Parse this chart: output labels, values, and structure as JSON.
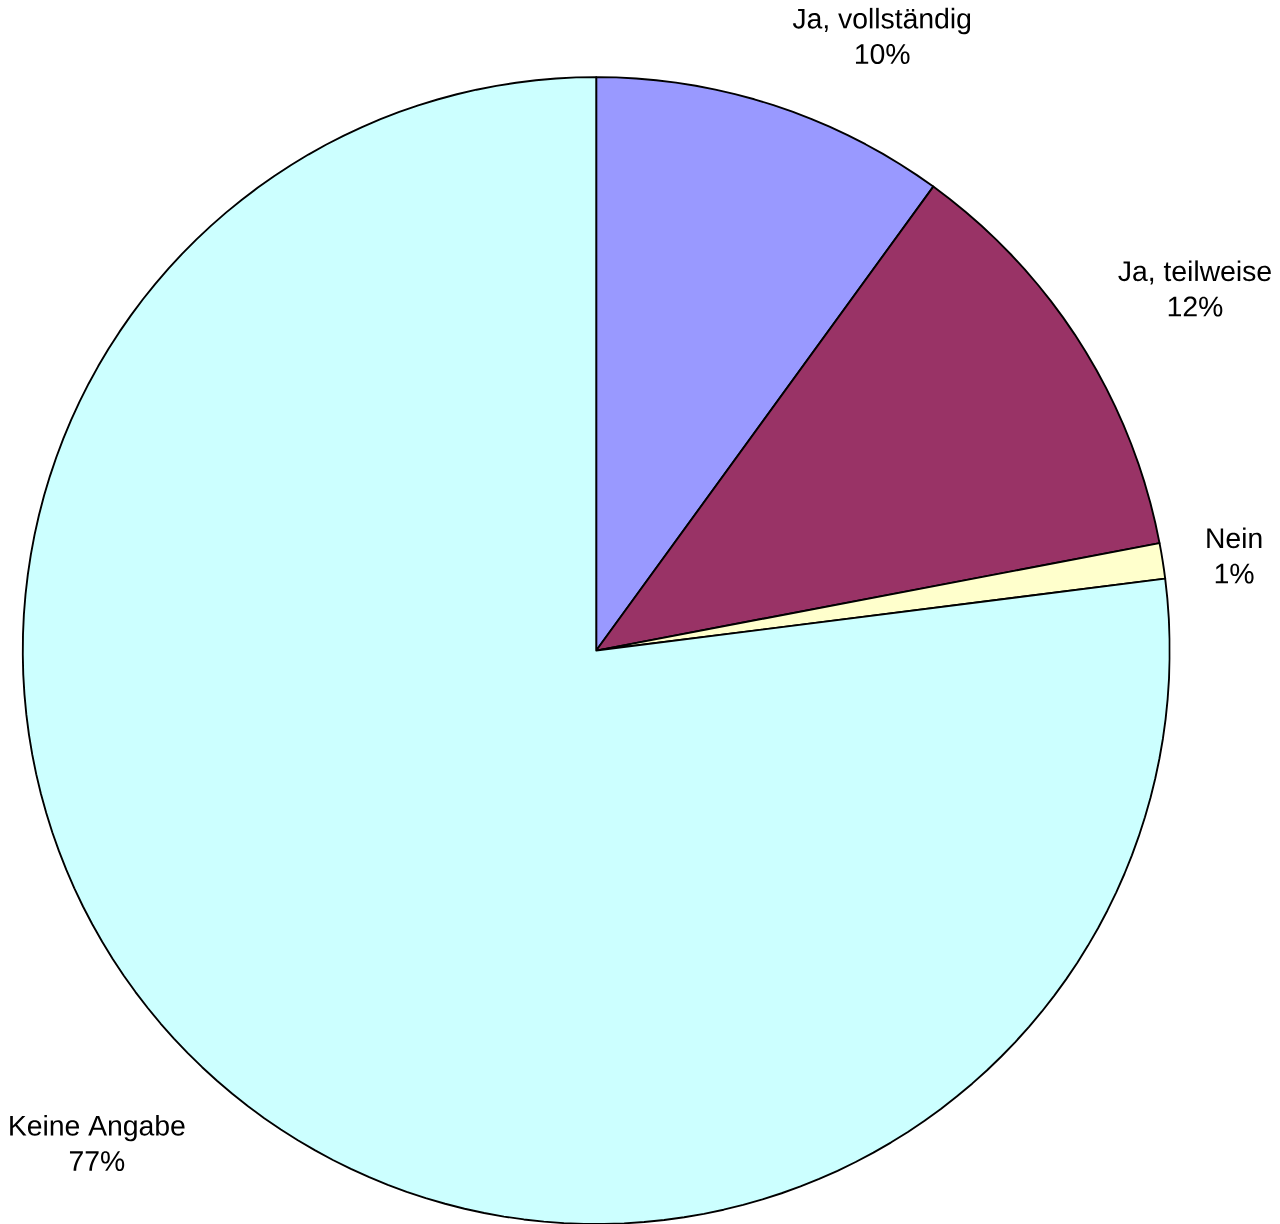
{
  "chart_data": {
    "type": "pie",
    "categories": [
      "Ja, vollständig",
      "Ja, teilweise",
      "Nein",
      "Keine Angabe"
    ],
    "values": [
      10,
      12,
      1,
      77
    ],
    "value_labels": [
      "10%",
      "12%",
      "1%",
      "77%"
    ],
    "colors": [
      "#9999ff",
      "#993366",
      "#ffffcc",
      "#ccffff"
    ]
  }
}
